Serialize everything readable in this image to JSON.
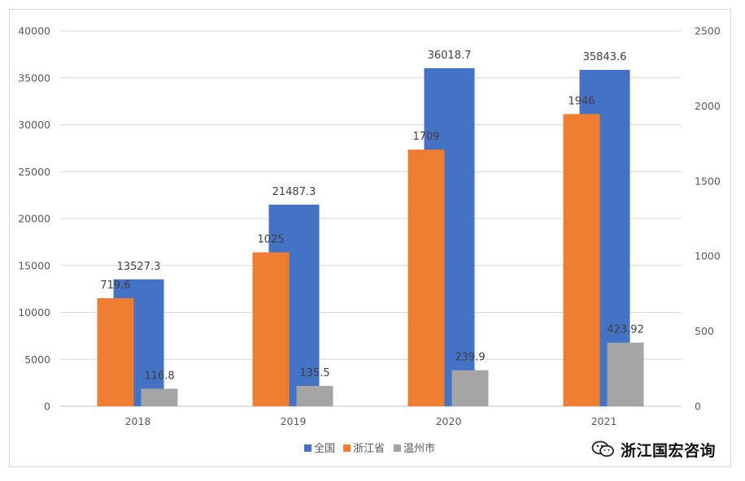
{
  "chart_data": {
    "type": "bar",
    "categories": [
      "2018",
      "2019",
      "2020",
      "2021"
    ],
    "series": [
      {
        "name": "全国",
        "axis": "left",
        "values": [
          13527.3,
          21487.3,
          36018.7,
          35843.6
        ],
        "labels": [
          "13527.3",
          "21487.3",
          "36018.7",
          "35843.6"
        ],
        "color": "#4472c4"
      },
      {
        "name": "浙江省",
        "axis": "right",
        "values": [
          719.6,
          1025,
          1709,
          1946
        ],
        "labels": [
          "719.6",
          "1025",
          "1709",
          "1946"
        ],
        "color": "#ed7d31"
      },
      {
        "name": "温州市",
        "axis": "right",
        "values": [
          116.8,
          135.5,
          239.9,
          423.92
        ],
        "labels": [
          "116.8",
          "135.5",
          "239.9",
          "423.92"
        ],
        "color": "#a5a5a5"
      }
    ],
    "ylim_left": [
      0,
      40000
    ],
    "yticks_left": [
      "0",
      "5000",
      "10000",
      "15000",
      "20000",
      "25000",
      "30000",
      "35000",
      "40000"
    ],
    "ylim_right": [
      0,
      2500
    ],
    "yticks_right": [
      "0",
      "500",
      "1000",
      "1500",
      "2000",
      "2500"
    ],
    "grid": true,
    "legend": "bottom"
  },
  "watermark": {
    "text": "浙江国宏咨询",
    "icon": "wechat-icon"
  }
}
